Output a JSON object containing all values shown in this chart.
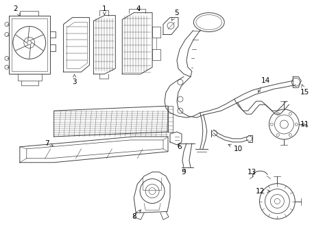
{
  "background_color": "#ffffff",
  "line_color": "#404040",
  "label_color": "#000000",
  "figsize": [
    4.9,
    3.6
  ],
  "dpi": 100
}
